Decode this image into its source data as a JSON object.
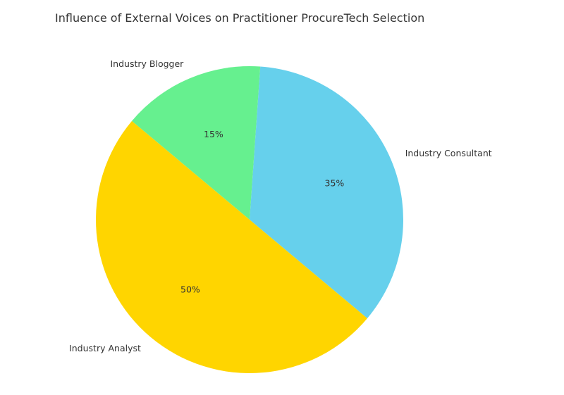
{
  "chart_data": {
    "type": "pie",
    "title": "Influence of External Voices on Practitioner ProcureTech Selection",
    "slices": [
      {
        "label": "Industry Consultant",
        "value": 35,
        "pct_label": "35%",
        "color": "#66d0ec"
      },
      {
        "label": "Industry Blogger",
        "value": 15,
        "pct_label": "15%",
        "color": "#66f08f"
      },
      {
        "label": "Industry Analyst",
        "value": 50,
        "pct_label": "50%",
        "color": "#ffd500"
      }
    ],
    "start_angle_deg": -40,
    "direction": "counterclockwise",
    "legend": "none"
  }
}
